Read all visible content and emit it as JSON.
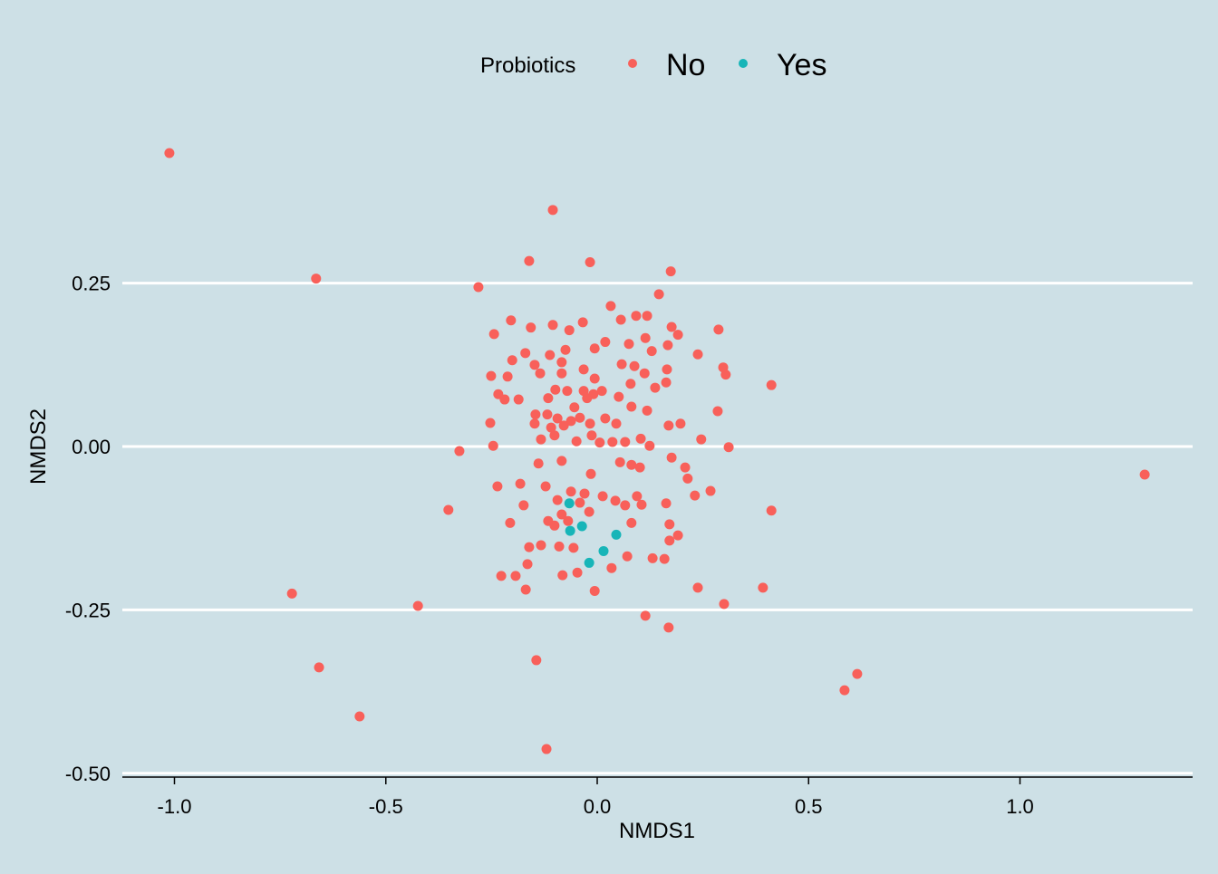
{
  "chart_data": {
    "type": "scatter",
    "title": "",
    "xlabel": "NMDS1",
    "ylabel": "NMDS2",
    "xlim": [
      -1.12,
      1.41
    ],
    "ylim": [
      -0.505,
      0.49
    ],
    "x_ticks": [
      -1.0,
      -0.5,
      0.0,
      0.5,
      1.0
    ],
    "x_tick_labels": [
      "-1.0",
      "-0.5",
      "0.0",
      "0.5",
      "1.0"
    ],
    "y_ticks": [
      0.25,
      0.0,
      -0.25,
      -0.5
    ],
    "y_tick_labels": [
      "0.25",
      "0.00",
      "-0.25",
      "-0.50"
    ],
    "grid": "horizontal",
    "legend": {
      "title": "Probiotics",
      "placement": "top"
    },
    "series": [
      {
        "name": "No",
        "color": "#f8605a",
        "points": [
          [
            -1.012,
            0.449
          ],
          [
            -0.105,
            0.362
          ],
          [
            -0.665,
            0.257
          ],
          [
            -0.161,
            0.284
          ],
          [
            -0.017,
            0.282
          ],
          [
            0.174,
            0.268
          ],
          [
            -0.281,
            0.244
          ],
          [
            1.295,
            -0.043
          ],
          [
            -0.722,
            -0.225
          ],
          [
            -0.424,
            -0.244
          ],
          [
            -0.658,
            -0.338
          ],
          [
            -0.562,
            -0.413
          ],
          [
            -0.12,
            -0.463
          ],
          [
            -0.144,
            -0.327
          ],
          [
            0.615,
            -0.348
          ],
          [
            0.585,
            -0.373
          ],
          [
            0.392,
            -0.216
          ],
          [
            0.3,
            -0.241
          ],
          [
            0.169,
            -0.277
          ],
          [
            0.114,
            -0.259
          ],
          [
            0.412,
            0.094
          ],
          [
            0.412,
            -0.098
          ],
          [
            -0.352,
            -0.097
          ],
          [
            -0.326,
            -0.007
          ],
          [
            0.311,
            -0.001
          ],
          [
            0.238,
            -0.216
          ],
          [
            -0.006,
            -0.221
          ],
          [
            0.032,
            0.215
          ],
          [
            0.146,
            0.233
          ],
          [
            -0.204,
            0.193
          ],
          [
            -0.157,
            0.182
          ],
          [
            -0.105,
            0.186
          ],
          [
            -0.034,
            0.19
          ],
          [
            0.056,
            0.194
          ],
          [
            0.092,
            0.2
          ],
          [
            0.118,
            0.2
          ],
          [
            0.176,
            0.183
          ],
          [
            0.191,
            0.171
          ],
          [
            0.287,
            0.179
          ],
          [
            -0.244,
            0.172
          ],
          [
            -0.066,
            0.178
          ],
          [
            -0.17,
            0.143
          ],
          [
            -0.112,
            0.14
          ],
          [
            -0.075,
            0.148
          ],
          [
            -0.006,
            0.15
          ],
          [
            0.019,
            0.16
          ],
          [
            0.075,
            0.157
          ],
          [
            0.114,
            0.166
          ],
          [
            0.129,
            0.146
          ],
          [
            0.167,
            0.155
          ],
          [
            0.238,
            0.141
          ],
          [
            -0.201,
            0.132
          ],
          [
            -0.148,
            0.125
          ],
          [
            -0.084,
            0.129
          ],
          [
            -0.032,
            0.118
          ],
          [
            0.058,
            0.126
          ],
          [
            0.088,
            0.123
          ],
          [
            0.112,
            0.112
          ],
          [
            0.165,
            0.118
          ],
          [
            0.298,
            0.121
          ],
          [
            0.304,
            0.11
          ],
          [
            -0.251,
            0.108
          ],
          [
            -0.212,
            0.107
          ],
          [
            -0.135,
            0.112
          ],
          [
            -0.084,
            0.112
          ],
          [
            -0.006,
            0.104
          ],
          [
            0.163,
            0.098
          ],
          [
            0.137,
            0.09
          ],
          [
            -0.234,
            0.08
          ],
          [
            -0.219,
            0.072
          ],
          [
            -0.186,
            0.072
          ],
          [
            -0.116,
            0.074
          ],
          [
            -0.099,
            0.087
          ],
          [
            -0.071,
            0.085
          ],
          [
            -0.032,
            0.085
          ],
          [
            -0.009,
            0.08
          ],
          [
            0.011,
            0.085
          ],
          [
            0.051,
            0.076
          ],
          [
            0.079,
            0.096
          ],
          [
            0.081,
            0.061
          ],
          [
            0.118,
            0.055
          ],
          [
            0.285,
            0.054
          ],
          [
            -0.253,
            0.036
          ],
          [
            -0.146,
            0.049
          ],
          [
            -0.118,
            0.049
          ],
          [
            -0.094,
            0.043
          ],
          [
            -0.062,
            0.039
          ],
          [
            -0.041,
            0.044
          ],
          [
            -0.017,
            0.035
          ],
          [
            0.019,
            0.043
          ],
          [
            0.045,
            0.035
          ],
          [
            -0.148,
            0.035
          ],
          [
            -0.109,
            0.029
          ],
          [
            -0.079,
            0.032
          ],
          [
            0.169,
            0.032
          ],
          [
            0.197,
            0.035
          ],
          [
            -0.133,
            0.011
          ],
          [
            -0.101,
            0.017
          ],
          [
            -0.049,
            0.008
          ],
          [
            -0.013,
            0.017
          ],
          [
            0.006,
            0.006
          ],
          [
            0.036,
            0.007
          ],
          [
            0.066,
            0.007
          ],
          [
            0.103,
            0.012
          ],
          [
            0.124,
            0.001
          ],
          [
            0.246,
            0.011
          ],
          [
            -0.246,
            0.001
          ],
          [
            -0.024,
            0.074
          ],
          [
            -0.054,
            0.06
          ],
          [
            -0.139,
            -0.026
          ],
          [
            -0.084,
            -0.022
          ],
          [
            -0.015,
            -0.042
          ],
          [
            0.054,
            -0.024
          ],
          [
            0.081,
            -0.028
          ],
          [
            0.101,
            -0.032
          ],
          [
            0.176,
            -0.017
          ],
          [
            0.208,
            -0.032
          ],
          [
            0.214,
            -0.049
          ],
          [
            0.268,
            -0.068
          ],
          [
            0.231,
            -0.075
          ],
          [
            -0.236,
            -0.061
          ],
          [
            -0.182,
            -0.057
          ],
          [
            -0.122,
            -0.061
          ],
          [
            -0.062,
            -0.069
          ],
          [
            -0.03,
            -0.072
          ],
          [
            0.013,
            -0.076
          ],
          [
            0.043,
            -0.083
          ],
          [
            0.094,
            -0.076
          ],
          [
            -0.174,
            -0.09
          ],
          [
            -0.094,
            -0.082
          ],
          [
            -0.041,
            -0.086
          ],
          [
            0.066,
            -0.09
          ],
          [
            0.105,
            -0.089
          ],
          [
            0.163,
            -0.087
          ],
          [
            -0.206,
            -0.117
          ],
          [
            -0.116,
            -0.114
          ],
          [
            -0.084,
            -0.104
          ],
          [
            -0.019,
            -0.1
          ],
          [
            0.081,
            -0.117
          ],
          [
            0.171,
            -0.119
          ],
          [
            0.191,
            -0.136
          ],
          [
            0.171,
            -0.144
          ],
          [
            -0.161,
            -0.154
          ],
          [
            -0.133,
            -0.151
          ],
          [
            -0.09,
            -0.153
          ],
          [
            -0.056,
            -0.155
          ],
          [
            0.071,
            -0.168
          ],
          [
            0.131,
            -0.171
          ],
          [
            0.159,
            -0.172
          ],
          [
            -0.165,
            -0.18
          ],
          [
            -0.082,
            -0.197
          ],
          [
            -0.047,
            -0.193
          ],
          [
            0.034,
            -0.186
          ],
          [
            -0.227,
            -0.198
          ],
          [
            -0.193,
            -0.198
          ],
          [
            -0.169,
            -0.219
          ],
          [
            -0.069,
            -0.114
          ],
          [
            -0.101,
            -0.121
          ]
        ]
      },
      {
        "name": "Yes",
        "color": "#17b5b8",
        "points": [
          [
            -0.066,
            -0.087
          ],
          [
            -0.064,
            -0.129
          ],
          [
            -0.036,
            -0.122
          ],
          [
            0.045,
            -0.135
          ],
          [
            0.015,
            -0.16
          ],
          [
            -0.019,
            -0.178
          ]
        ]
      }
    ]
  }
}
